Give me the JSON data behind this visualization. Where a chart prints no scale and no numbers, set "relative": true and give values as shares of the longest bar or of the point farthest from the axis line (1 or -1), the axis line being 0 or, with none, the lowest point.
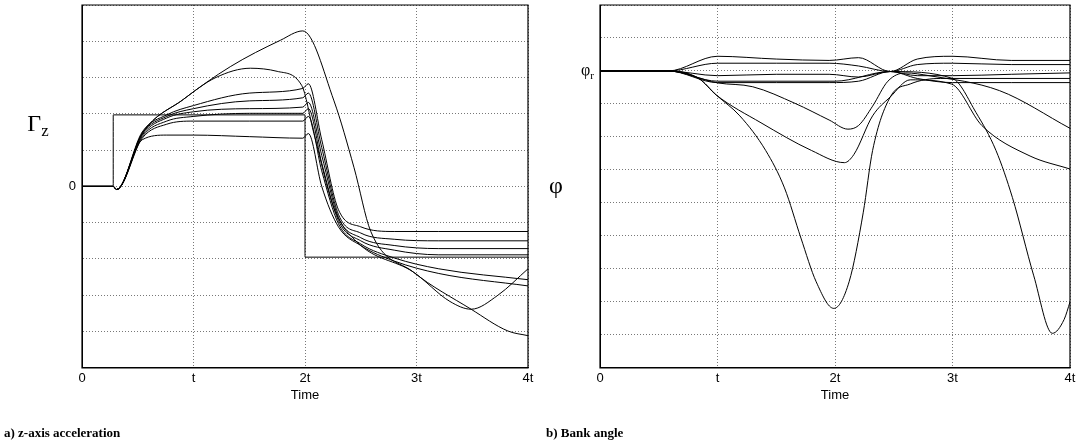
{
  "chart_data": [
    {
      "type": "line",
      "title": "a) z-axis acceleration",
      "xlabel": "Time",
      "ylabel": "Γ$_{z}$",
      "relative": true,
      "xlim": [
        0,
        4
      ],
      "xticks": [
        {
          "value": 0,
          "label": "0"
        },
        {
          "value": 1,
          "label": "t"
        },
        {
          "value": 2,
          "label": "2t"
        },
        {
          "value": 3,
          "label": "3t"
        },
        {
          "value": 4,
          "label": "4t"
        }
      ],
      "grid": true,
      "legend": false,
      "marker": "none",
      "annotations": [
        "0"
      ],
      "series": [
        {
          "color": "#000000",
          "x": [
            0,
            0.28,
            0.28,
            2,
            2,
            4
          ],
          "values": [
            0,
            0,
            0.46,
            0.46,
            -0.455,
            -0.455
          ]
        },
        {
          "color": "#000000",
          "x": [
            0,
            0.28,
            0.31,
            0.54,
            0.91,
            1.33,
            1.78,
            1.98,
            2.26,
            2.44,
            2.59,
            2.97,
            3.49,
            3.82,
            4
          ],
          "values": [
            0,
            0,
            -0.02,
            0.34,
            0.56,
            0.77,
            0.94,
            1.0,
            0.55,
            0.12,
            -0.29,
            -0.55,
            -0.79,
            -0.93,
            -0.96
          ]
        },
        {
          "color": "#000000",
          "x": [
            0,
            0.28,
            0.31,
            0.54,
            0.91,
            1.2,
            1.51,
            1.75,
            1.97,
            2.08,
            2.26,
            2.47,
            2.97,
            3.3,
            3.49,
            3.73,
            4
          ],
          "values": [
            0,
            0,
            -0.02,
            0.34,
            0.56,
            0.7,
            0.76,
            0.74,
            0.65,
            0.34,
            -0.14,
            -0.36,
            -0.55,
            -0.74,
            -0.79,
            -0.7,
            -0.53
          ]
        },
        {
          "color": "#000000",
          "x": [
            0,
            0.28,
            0.31,
            0.54,
            0.76,
            1.0,
            1.5,
            1.98,
            2.03,
            2.15,
            2.3,
            2.5,
            2.8,
            3.2,
            4
          ],
          "values": [
            0,
            0,
            -0.02,
            0.35,
            0.46,
            0.52,
            0.6,
            0.63,
            0.66,
            0.3,
            -0.15,
            -0.26,
            -0.29,
            -0.29,
            -0.29
          ]
        },
        {
          "color": "#000000",
          "x": [
            0,
            0.28,
            0.31,
            0.54,
            0.76,
            1.0,
            1.5,
            1.98,
            2.03,
            2.15,
            2.3,
            2.5,
            2.8,
            3.2,
            4
          ],
          "values": [
            0,
            0,
            -0.02,
            0.34,
            0.45,
            0.5,
            0.55,
            0.57,
            0.6,
            0.25,
            -0.18,
            -0.3,
            -0.34,
            -0.35,
            -0.35
          ]
        },
        {
          "color": "#000000",
          "x": [
            0,
            0.28,
            0.31,
            0.54,
            0.76,
            1.0,
            1.5,
            1.98,
            2.03,
            2.15,
            2.3,
            2.5,
            2.8,
            3.2,
            4
          ],
          "values": [
            0,
            0,
            -0.02,
            0.33,
            0.44,
            0.48,
            0.5,
            0.51,
            0.54,
            0.2,
            -0.2,
            -0.33,
            -0.38,
            -0.4,
            -0.4
          ]
        },
        {
          "color": "#000000",
          "x": [
            0,
            0.28,
            0.31,
            0.54,
            0.76,
            1.0,
            1.5,
            1.98,
            2.03,
            2.15,
            2.3,
            2.5,
            2.8,
            3.2,
            4
          ],
          "values": [
            0,
            0,
            -0.02,
            0.32,
            0.42,
            0.45,
            0.47,
            0.47,
            0.5,
            0.15,
            -0.22,
            -0.35,
            -0.41,
            -0.44,
            -0.44
          ]
        },
        {
          "color": "#000000",
          "x": [
            0,
            0.28,
            0.31,
            0.54,
            0.76,
            1.0,
            1.5,
            1.98,
            2.03,
            2.15,
            2.3,
            2.5,
            2.8,
            3.2,
            4
          ],
          "values": [
            0,
            0,
            -0.02,
            0.31,
            0.4,
            0.42,
            0.42,
            0.42,
            0.45,
            0.1,
            -0.24,
            -0.37,
            -0.46,
            -0.53,
            -0.6
          ]
        },
        {
          "color": "#000000",
          "x": [
            0,
            0.28,
            0.31,
            0.54,
            0.76,
            1.0,
            1.5,
            1.98,
            2.03,
            2.15,
            2.3,
            2.5,
            2.8,
            3.2,
            4
          ],
          "values": [
            0,
            0,
            -0.02,
            0.3,
            0.33,
            0.33,
            0.32,
            0.31,
            0.34,
            0.0,
            -0.26,
            -0.38,
            -0.48,
            -0.56,
            -0.64
          ]
        }
      ]
    },
    {
      "type": "line",
      "title": "b) Bank angle",
      "xlabel": "Time",
      "ylabel": "φ",
      "relative": true,
      "xlim": [
        0,
        4
      ],
      "xticks": [
        {
          "value": 0,
          "label": "0"
        },
        {
          "value": 1,
          "label": "t"
        },
        {
          "value": 2,
          "label": "2t"
        },
        {
          "value": 3,
          "label": "3t"
        },
        {
          "value": 4,
          "label": "4t"
        }
      ],
      "grid": true,
      "legend": false,
      "marker": "none",
      "annotations": [
        "φ$_{r}$"
      ],
      "series": [
        {
          "color": "#000000",
          "x": [
            0,
            0.58,
            1.0,
            1.5,
            1.95,
            2.2,
            2.47,
            2.7,
            3.0,
            3.5,
            4
          ],
          "values": [
            0.947,
            0.947,
            1.0,
            0.99,
            0.985,
            0.995,
            0.945,
            0.99,
            1.0,
            0.985,
            0.985
          ]
        },
        {
          "color": "#000000",
          "x": [
            0,
            0.58,
            1.0,
            1.5,
            1.95,
            2.2,
            2.47,
            2.7,
            3.0,
            3.5,
            4
          ],
          "values": [
            0.947,
            0.947,
            0.975,
            0.975,
            0.975,
            0.965,
            0.945,
            0.97,
            0.975,
            0.97,
            0.97
          ]
        },
        {
          "color": "#000000",
          "x": [
            0,
            0.58,
            1.0,
            1.5,
            1.95,
            2.2,
            2.47,
            2.7,
            3.0,
            3.5,
            4
          ],
          "values": [
            0.947,
            0.947,
            0.93,
            0.935,
            0.935,
            0.925,
            0.945,
            0.93,
            0.93,
            0.935,
            0.94
          ]
        },
        {
          "color": "#000000",
          "x": [
            0,
            0.58,
            1.0,
            1.5,
            1.95,
            2.2,
            2.47,
            2.7,
            3.0,
            3.5,
            4
          ],
          "values": [
            0.947,
            0.947,
            0.905,
            0.905,
            0.905,
            0.91,
            0.945,
            0.92,
            0.905,
            0.905,
            0.905
          ]
        },
        {
          "color": "#000000",
          "x": [
            0,
            0.58,
            1.0,
            1.3,
            1.66,
            1.95,
            2.11,
            2.2,
            2.32,
            2.45,
            2.6,
            2.8,
            3.4,
            4
          ],
          "values": [
            0.947,
            0.947,
            0.904,
            0.89,
            0.83,
            0.77,
            0.737,
            0.75,
            0.82,
            0.91,
            0.94,
            0.93,
            0.876,
            0.74
          ]
        },
        {
          "color": "#000000",
          "x": [
            0,
            0.58,
            0.84,
            0.99,
            1.37,
            1.8,
            2.08,
            2.16,
            2.32,
            2.47,
            2.64,
            2.99,
            3.25,
            3.66,
            4
          ],
          "values": [
            0.947,
            0.947,
            0.92,
            0.86,
            0.76,
            0.66,
            0.616,
            0.645,
            0.785,
            0.853,
            0.915,
            0.9,
            0.75,
            0.64,
            0.593
          ]
        },
        {
          "color": "#000000",
          "x": [
            0,
            0.58,
            0.84,
            0.99,
            1.19,
            1.41,
            1.57,
            1.71,
            1.84,
            1.99,
            2.12,
            2.24,
            2.32,
            2.47,
            2.64,
            2.9,
            4
          ],
          "values": [
            0.947,
            0.947,
            0.92,
            0.86,
            0.785,
            0.66,
            0.525,
            0.344,
            0.186,
            0.09,
            0.186,
            0.435,
            0.66,
            0.853,
            0.9,
            0.92,
            0.92
          ]
        },
        {
          "color": "#000000",
          "x": [
            0,
            0.58,
            1.0,
            2.0,
            2.47,
            3.0,
            3.2,
            3.37,
            3.51,
            3.69,
            3.85,
            3.95,
            4
          ],
          "values": [
            0.947,
            0.947,
            0.91,
            0.91,
            0.945,
            0.92,
            0.797,
            0.66,
            0.49,
            0.21,
            0,
            0.05,
            0.113
          ]
        }
      ]
    }
  ]
}
